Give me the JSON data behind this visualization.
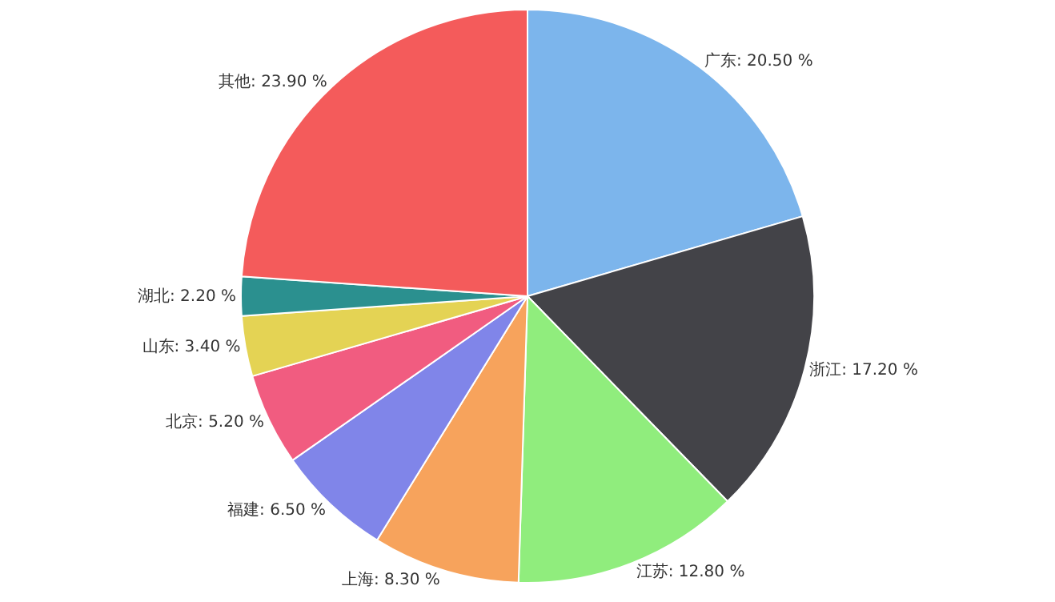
{
  "chart_data": {
    "type": "pie",
    "categories": [
      "广东",
      "浙江",
      "江苏",
      "上海",
      "福建",
      "北京",
      "山东",
      "湖北",
      "其他"
    ],
    "values": [
      20.5,
      17.2,
      12.8,
      8.3,
      6.5,
      5.2,
      3.4,
      2.2,
      23.9
    ],
    "value_labels": [
      "20.50 %",
      "17.20 %",
      "12.80 %",
      "8.30 %",
      "6.50 %",
      "5.20 %",
      "3.40 %",
      "2.20 %",
      "23.90 %"
    ],
    "colors": [
      "#7cb5ec",
      "#434348",
      "#90ed7d",
      "#f7a35c",
      "#8085e9",
      "#f15c80",
      "#e4d354",
      "#2b908f",
      "#f45b5b"
    ],
    "legend": false
  }
}
